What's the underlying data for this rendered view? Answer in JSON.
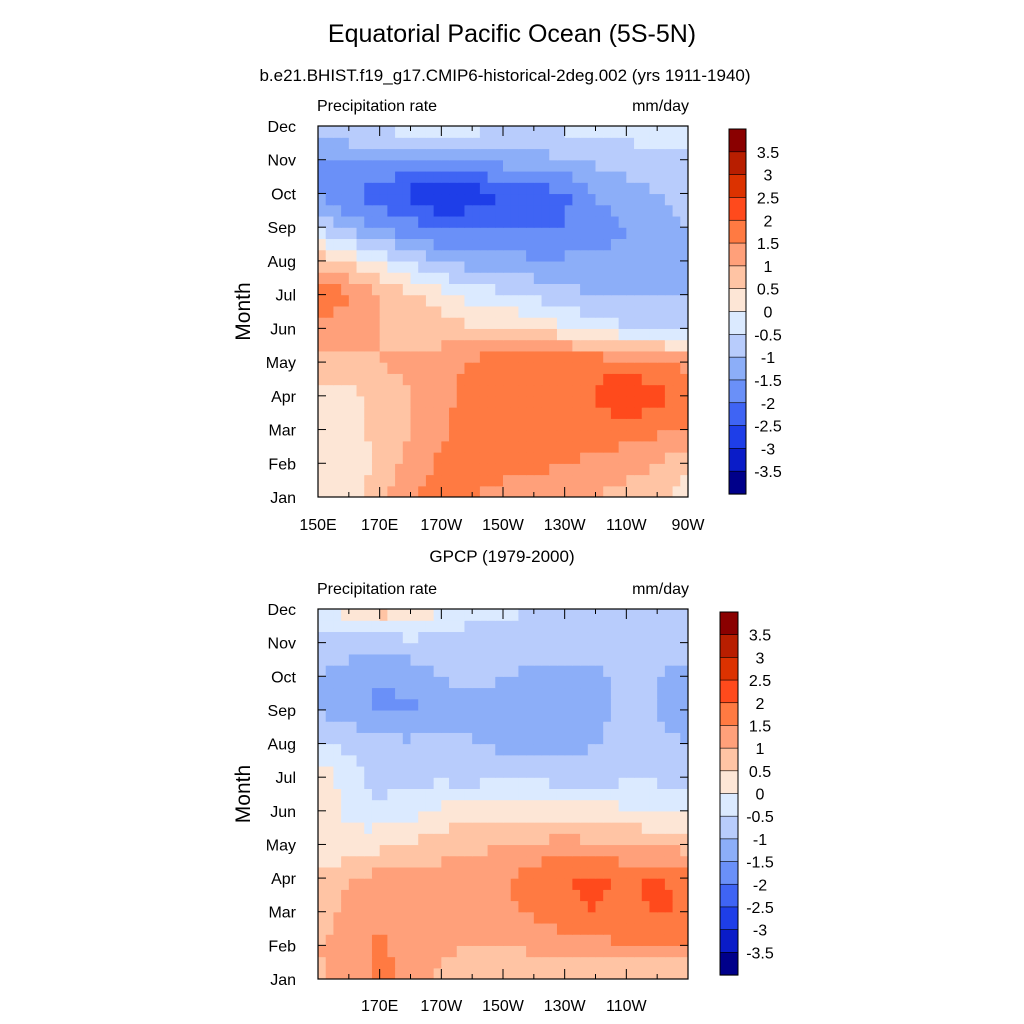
{
  "figure": {
    "title": "Equatorial Pacific Ocean (5S-5N)"
  },
  "colorbar": {
    "labels": [
      "3.5",
      "3",
      "2.5",
      "2",
      "1.5",
      "1",
      "0.5",
      "0",
      "-0.5",
      "-1",
      "-1.5",
      "-2",
      "-2.5",
      "-3",
      "-3.5"
    ],
    "colors": [
      "#8a0000",
      "#b81e00",
      "#dc3200",
      "#ff4a1c",
      "#ff7a42",
      "#ffa07a",
      "#ffc4a4",
      "#fde6d6",
      "#dbeaff",
      "#b8ccfc",
      "#8caef8",
      "#6a90f8",
      "#3f64f4",
      "#1e3ee8",
      "#0a1cc8",
      "#00008a"
    ]
  },
  "panels": [
    {
      "subtitle": "b.e21.BHIST.f19_g17.CMIP6-historical-2deg.002 (yrs 1911-1940)",
      "left_label": "Precipitation rate",
      "right_label": "mm/day",
      "ylabel": "Month",
      "months": [
        "Jan",
        "Feb",
        "Mar",
        "Apr",
        "May",
        "Jun",
        "Jul",
        "Aug",
        "Sep",
        "Oct",
        "Nov",
        "Dec"
      ],
      "xticks": [
        "150E",
        "170E",
        "170W",
        "150W",
        "130W",
        "110W",
        "90W"
      ]
    },
    {
      "subtitle": "GPCP (1979-2000)",
      "left_label": "Precipitation rate",
      "right_label": "mm/day",
      "ylabel": "Month",
      "months": [
        "Jan",
        "Feb",
        "Mar",
        "Apr",
        "May",
        "Jun",
        "Jul",
        "Aug",
        "Sep",
        "Oct",
        "Nov",
        "Dec"
      ],
      "xticks": [
        "170E",
        "170W",
        "150W",
        "130W",
        "110W"
      ]
    }
  ],
  "chart_data": [
    {
      "type": "heatmap",
      "title": "b.e21.BHIST.f19_g17.CMIP6-historical-2deg.002 (yrs 1911-1940)",
      "ylabel": "Month",
      "units": "mm/day",
      "x": [
        150,
        160,
        170,
        180,
        190,
        200,
        210,
        220,
        230,
        240,
        250,
        260,
        270
      ],
      "x_display": [
        "150E",
        "",
        "170E",
        "",
        "170W",
        "",
        "150W",
        "",
        "130W",
        "",
        "110W",
        "",
        "90W"
      ],
      "y": [
        "Jan",
        "Feb",
        "Mar",
        "Apr",
        "May",
        "Jun",
        "Jul",
        "Aug",
        "Sep",
        "Oct",
        "Nov",
        "Dec"
      ],
      "z": [
        [
          0.3,
          0.3,
          0.8,
          1.5,
          1.8,
          1.5,
          1.2,
          1.2,
          1.2,
          1.0,
          0.8,
          0.6,
          0.3
        ],
        [
          0.3,
          0.2,
          0.6,
          1.2,
          1.6,
          1.8,
          1.8,
          1.6,
          1.5,
          1.4,
          1.2,
          1.0,
          0.6
        ],
        [
          0.3,
          0.2,
          0.7,
          1.0,
          1.4,
          1.8,
          1.9,
          1.9,
          1.8,
          1.8,
          1.7,
          1.6,
          1.5
        ],
        [
          0.4,
          0.3,
          0.7,
          1.0,
          1.3,
          1.8,
          1.9,
          1.9,
          1.8,
          2.0,
          2.5,
          2.2,
          1.8
        ],
        [
          0.8,
          0.8,
          1.0,
          1.1,
          1.2,
          1.6,
          1.9,
          2.0,
          2.0,
          1.9,
          1.8,
          1.6,
          1.4
        ],
        [
          1.2,
          1.3,
          1.0,
          0.8,
          0.8,
          0.6,
          0.6,
          0.4,
          0.1,
          -0.3,
          -0.4,
          -0.5,
          -0.6
        ],
        [
          2.1,
          1.5,
          1.0,
          0.6,
          0.2,
          -0.2,
          -0.4,
          -0.6,
          -0.8,
          -1.0,
          -1.1,
          -1.1,
          -1.0
        ],
        [
          0.8,
          0.4,
          -0.1,
          -0.6,
          -1.0,
          -1.2,
          -1.3,
          -1.4,
          -1.4,
          -1.4,
          -1.4,
          -1.4,
          -1.3
        ],
        [
          -0.6,
          -1.2,
          -1.6,
          -1.8,
          -2.1,
          -2.1,
          -2.1,
          -2.1,
          -2.0,
          -1.7,
          -1.5,
          -1.3,
          -0.9
        ],
        [
          -1.6,
          -2.0,
          -2.2,
          -2.7,
          -3.1,
          -2.8,
          -2.5,
          -2.3,
          -2.1,
          -1.5,
          -1.2,
          -1.0,
          -0.8
        ],
        [
          -1.5,
          -1.6,
          -1.5,
          -1.5,
          -1.5,
          -1.4,
          -1.3,
          -1.2,
          -1.0,
          -0.9,
          -0.8,
          -0.7,
          -0.6
        ],
        [
          -0.6,
          -0.4,
          -0.4,
          -0.2,
          -0.3,
          -0.3,
          -0.4,
          -0.4,
          -0.4,
          -0.3,
          -0.2,
          -0.3,
          -0.4
        ]
      ],
      "colorbar_levels": [
        -3.5,
        -3,
        -2.5,
        -2,
        -1.5,
        -1,
        -0.5,
        0,
        0.5,
        1,
        1.5,
        2,
        2.5,
        3,
        3.5
      ],
      "colorbar_labels": [
        "-3.5",
        "-3",
        "-2.5",
        "-2",
        "-1.5",
        "-1",
        "-0.5",
        "0",
        "0.5",
        "1",
        "1.5",
        "2",
        "2.5",
        "3",
        "3.5"
      ]
    },
    {
      "type": "heatmap",
      "title": "GPCP (1979-2000)",
      "ylabel": "Month",
      "units": "mm/day",
      "x": [
        150,
        160,
        170,
        180,
        190,
        200,
        210,
        220,
        230,
        240,
        250,
        260,
        270
      ],
      "x_display": [
        "",
        "",
        "170E",
        "",
        "170W",
        "",
        "150W",
        "",
        "130W",
        "",
        "110W",
        "",
        ""
      ],
      "y": [
        "Jan",
        "Feb",
        "Mar",
        "Apr",
        "May",
        "Jun",
        "Jul",
        "Aug",
        "Sep",
        "Oct",
        "Nov",
        "Dec"
      ],
      "z": [
        [
          0.9,
          1.2,
          1.6,
          1.4,
          0.9,
          0.7,
          0.6,
          0.6,
          0.5,
          0.4,
          0.4,
          0.3,
          0.3
        ],
        [
          1.0,
          1.2,
          1.6,
          1.3,
          1.1,
          1.0,
          1.0,
          1.1,
          1.2,
          1.3,
          1.5,
          1.6,
          1.5
        ],
        [
          0.8,
          1.1,
          1.3,
          1.1,
          1.2,
          1.3,
          1.4,
          1.6,
          1.9,
          2.0,
          1.8,
          2.1,
          1.9
        ],
        [
          0.7,
          1.0,
          1.2,
          1.2,
          1.2,
          1.2,
          1.4,
          1.8,
          2.0,
          2.1,
          1.9,
          2.1,
          1.8
        ],
        [
          0.1,
          0.1,
          0.4,
          0.6,
          0.8,
          0.9,
          1.0,
          1.1,
          1.2,
          1.1,
          1.0,
          0.9,
          0.8
        ],
        [
          0.4,
          -0.1,
          -0.4,
          -0.2,
          0.1,
          0.3,
          0.4,
          0.3,
          0.3,
          0.2,
          0.1,
          0.0,
          -0.1
        ],
        [
          0.4,
          -0.3,
          -0.7,
          -0.6,
          -0.6,
          -0.7,
          -0.6,
          -0.6,
          -0.7,
          -0.7,
          -0.6,
          -0.6,
          -0.7
        ],
        [
          -0.4,
          -0.6,
          -0.8,
          -0.9,
          -0.8,
          -1.0,
          -1.1,
          -1.2,
          -1.2,
          -1.0,
          -0.9,
          -0.9,
          -1.0
        ],
        [
          -1.1,
          -1.2,
          -1.6,
          -1.6,
          -1.2,
          -1.1,
          -1.1,
          -1.2,
          -1.2,
          -1.1,
          -0.9,
          -1.0,
          -1.2
        ],
        [
          -1.0,
          -1.3,
          -1.5,
          -1.3,
          -1.0,
          -0.9,
          -1.0,
          -1.1,
          -1.1,
          -1.1,
          -0.9,
          -1.0,
          -1.1
        ],
        [
          -0.6,
          -0.7,
          -0.8,
          -0.7,
          -0.7,
          -0.8,
          -0.8,
          -0.7,
          -0.7,
          -0.7,
          -0.8,
          -0.9,
          -0.8
        ],
        [
          -0.2,
          0.3,
          0.8,
          0.6,
          0.0,
          -0.3,
          -0.4,
          -0.5,
          -0.5,
          -0.5,
          -0.5,
          -0.6,
          -0.5
        ]
      ],
      "colorbar_levels": [
        -3.5,
        -3,
        -2.5,
        -2,
        -1.5,
        -1,
        -0.5,
        0,
        0.5,
        1,
        1.5,
        2,
        2.5,
        3,
        3.5
      ],
      "colorbar_labels": [
        "-3.5",
        "-3",
        "-2.5",
        "-2",
        "-1.5",
        "-1",
        "-0.5",
        "0",
        "0.5",
        "1",
        "1.5",
        "2",
        "2.5",
        "3",
        "3.5"
      ]
    }
  ]
}
